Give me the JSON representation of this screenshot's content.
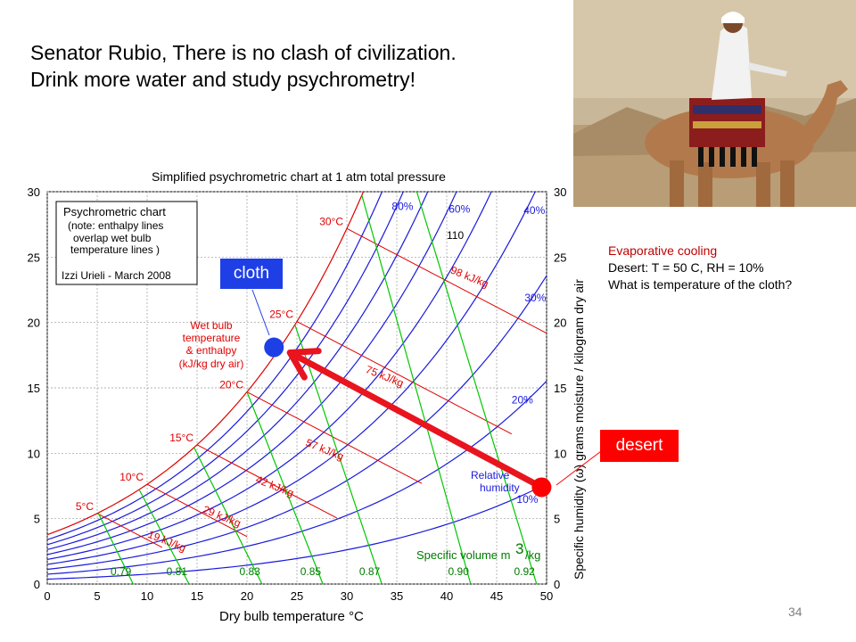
{
  "slide": {
    "title_line1": "Senator Rubio, There is no clash of civilization.",
    "title_line2": "Drink more water and study psychrometry!",
    "page_number": "34"
  },
  "notes": {
    "line1": "Evaporative cooling",
    "line2": "Desert:  T = 50 C, RH = 10%",
    "line3": "What is temperature of the cloth?"
  },
  "callouts": {
    "cloth": "cloth",
    "desert": "desert",
    "cloth_color": "#1f3fe6",
    "desert_color": "#ff0000",
    "arrow_color": "#e8141e"
  },
  "chart_data": {
    "type": "line",
    "title": "Simplified psychrometric chart at 1 atm total pressure",
    "xlabel": "Dry bulb temperature  °C",
    "ylabel": "Specific humidity (ω) grams moisture / kilogram dry air",
    "xlim": [
      0,
      50
    ],
    "ylim": [
      0,
      30
    ],
    "xticks": [
      0,
      5,
      10,
      15,
      20,
      25,
      30,
      35,
      40,
      45,
      50
    ],
    "yticks": [
      0,
      5,
      10,
      15,
      20,
      25,
      30
    ],
    "grid": true,
    "legend_box": {
      "line1": "Psychrometric chart",
      "line2": "(note: enthalpy lines",
      "line3": "overlap wet bulb",
      "line4": "temperature lines )",
      "line5": "Izzi Urieli - March 2008"
    },
    "wet_bulb_label": {
      "line1": "Wet bulb",
      "line2": "temperature",
      "line3": "& enthalpy",
      "line4": "(kJ/kg dry air)"
    },
    "rh_caption": {
      "line1": "Relative",
      "line2": "humidity"
    },
    "specific_volume_caption": "Specific volume m",
    "specific_volume_unit": "/kg",
    "specific_volume_exp": "3",
    "series_relative_humidity": [
      {
        "label": "10%",
        "rh": 0.1
      },
      {
        "label": "",
        "rh": 0.2
      },
      {
        "label": "",
        "rh": 0.3
      },
      {
        "label": "",
        "rh": 0.4
      },
      {
        "label": "",
        "rh": 0.5
      },
      {
        "label": "",
        "rh": 0.6
      },
      {
        "label": "",
        "rh": 0.7
      },
      {
        "label": "",
        "rh": 0.8
      },
      {
        "label": "",
        "rh": 0.9
      },
      {
        "label": "",
        "rh": 1.0
      }
    ],
    "rh_labels": [
      {
        "text": "10%",
        "x": 47,
        "y": 6.2
      },
      {
        "text": "20%",
        "x": 46.5,
        "y": 13.8
      },
      {
        "text": "30%",
        "x": 47.8,
        "y": 21.6
      },
      {
        "text": "40%",
        "x": 47.7,
        "y": 28.3
      },
      {
        "text": "60%",
        "x": 40.2,
        "y": 28.4
      },
      {
        "text": "80%",
        "x": 34.5,
        "y": 28.6
      }
    ],
    "wet_bulb_lines": [
      {
        "label": "5°C",
        "t": 5,
        "end_x": 11.5
      },
      {
        "label": "10°C",
        "t": 10,
        "end_x": 20
      },
      {
        "label": "15°C",
        "t": 15,
        "end_x": 29
      },
      {
        "label": "20°C",
        "t": 20,
        "end_x": 37.5
      },
      {
        "label": "25°C",
        "t": 25,
        "end_x": 46.5
      },
      {
        "label": "30°C",
        "t": 30,
        "end_x": 50
      }
    ],
    "enthalpy_labels": [
      {
        "text": "19 kJ/kg",
        "x": 10,
        "y": 3.6
      },
      {
        "text": "29 kJ/kg",
        "x": 15.5,
        "y": 5.5
      },
      {
        "text": "42 kJ/kg",
        "x": 20.8,
        "y": 7.8
      },
      {
        "text": "57 kJ/kg",
        "x": 25.8,
        "y": 10.6
      },
      {
        "text": "75 kJ/kg",
        "x": 31.8,
        "y": 16.2
      },
      {
        "text": "98 kJ/kg",
        "x": 40.3,
        "y": 23.8
      },
      {
        "text": "110",
        "x": 40,
        "y": 26.4
      }
    ],
    "specific_volume_lines": [
      {
        "label": "0.79",
        "t_top": 5.1,
        "t_bottom": 8.6
      },
      {
        "label": "0.81",
        "t_top": 9.2,
        "t_bottom": 14.2
      },
      {
        "label": "0.83",
        "t_top": 14.7,
        "t_bottom": 21.5
      },
      {
        "label": "0.85",
        "t_top": 20,
        "t_bottom": 27.6
      },
      {
        "label": "0.87",
        "t_top": 24.8,
        "t_bottom": 33.5
      },
      {
        "label": "0.90",
        "t_top": 31.5,
        "t_bottom": 42.4
      },
      {
        "label": "0.92",
        "t_top": 37,
        "t_bottom": 49
      }
    ],
    "points": [
      {
        "name": "desert",
        "x": 49.5,
        "y": 7.4,
        "color": "#ff0000"
      },
      {
        "name": "cloth",
        "x": 22.7,
        "y": 18.1,
        "color": "#1f3fe6"
      }
    ]
  }
}
